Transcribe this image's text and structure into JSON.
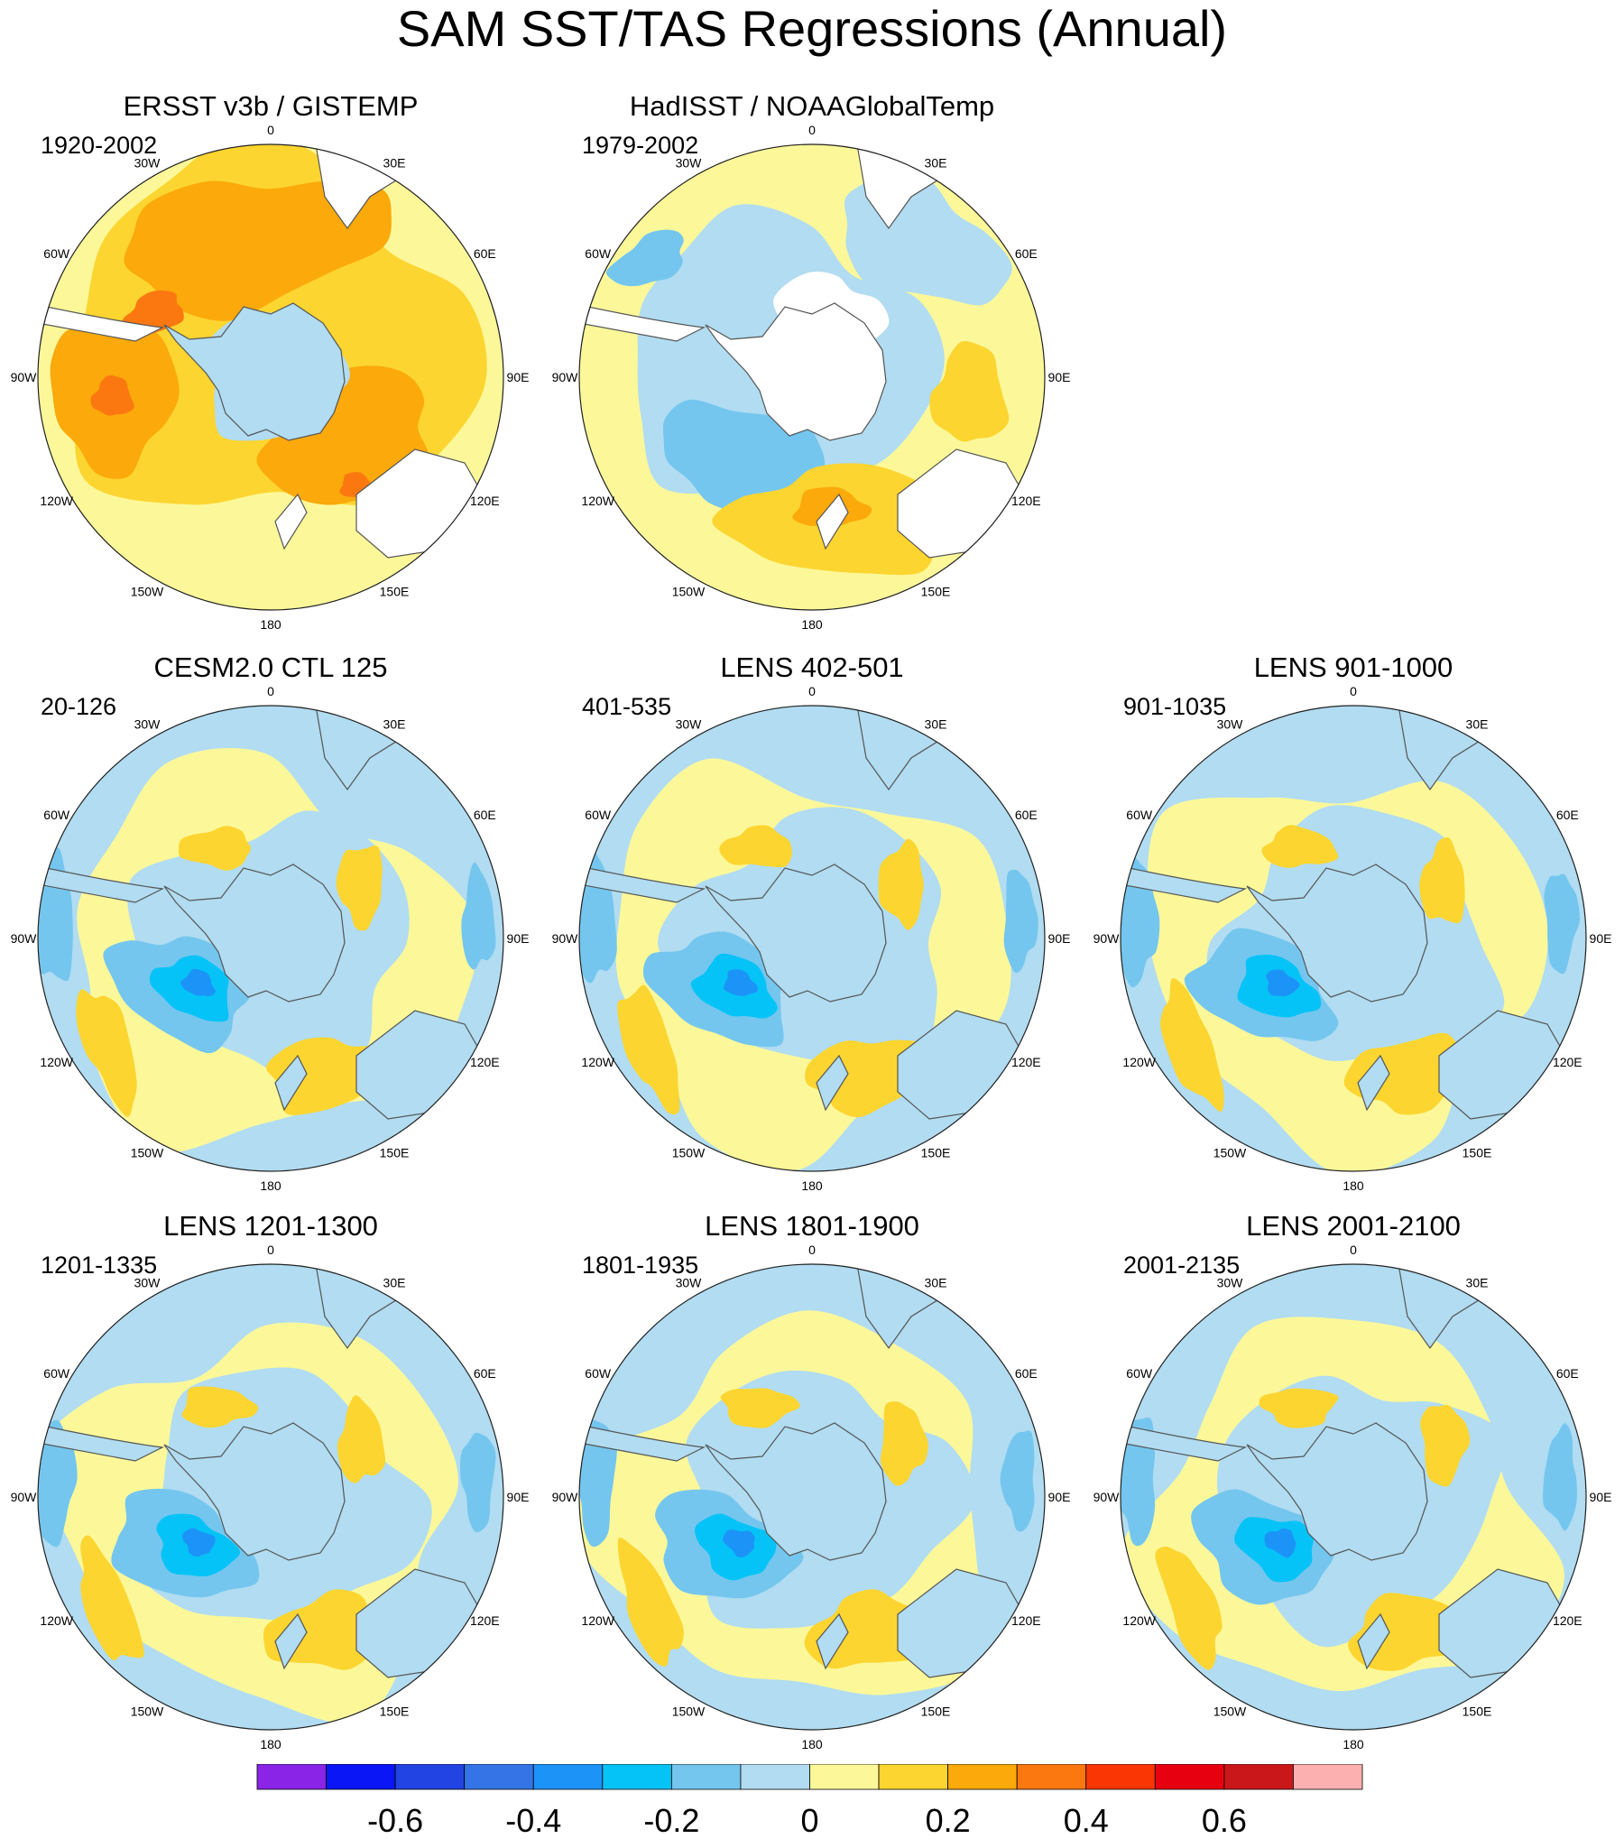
{
  "title": "SAM SST/TAS Regressions (Annual)",
  "panels": [
    {
      "title": "ERSST v3b / GISTEMP",
      "period": "1920-2002",
      "pattern": "obs_warm"
    },
    {
      "title": "HadISST / NOAAGlobalTemp",
      "period": "1979-2002",
      "pattern": "obs_recent"
    },
    {
      "title": "CESM2.0 CTL 125",
      "period": "20-126",
      "pattern": "model"
    },
    {
      "title": "LENS 402-501",
      "period": "401-535",
      "pattern": "model"
    },
    {
      "title": "LENS 901-1000",
      "period": "901-1035",
      "pattern": "model"
    },
    {
      "title": "LENS 1201-1300",
      "period": "1201-1335",
      "pattern": "model"
    },
    {
      "title": "LENS 1801-1900",
      "period": "1801-1935",
      "pattern": "model"
    },
    {
      "title": "LENS 2001-2100",
      "period": "2001-2135",
      "pattern": "model"
    }
  ],
  "longitude_labels": [
    "0",
    "30E",
    "60E",
    "90E",
    "120E",
    "150E",
    "180",
    "150W",
    "120W",
    "90W",
    "60W",
    "30W"
  ],
  "colorbar": {
    "colors": [
      "#8a24e6",
      "#0a16f5",
      "#2244e2",
      "#3474e6",
      "#1c93f7",
      "#06c3f7",
      "#74c6ee",
      "#b1dcf1",
      "#fcf89a",
      "#fdd530",
      "#fba90b",
      "#fb7810",
      "#fa3604",
      "#e70010",
      "#ca181a",
      "#fcb1b0"
    ],
    "tick_labels": [
      "-0.6",
      "-0.4",
      "-0.2",
      "0",
      "0.2",
      "0.4",
      "0.6"
    ],
    "tick_values": [
      -0.6,
      -0.4,
      -0.2,
      0,
      0.2,
      0.4,
      0.6
    ],
    "levels_min": -0.8,
    "levels_max": 0.8
  },
  "land_color": "#ffffff"
}
